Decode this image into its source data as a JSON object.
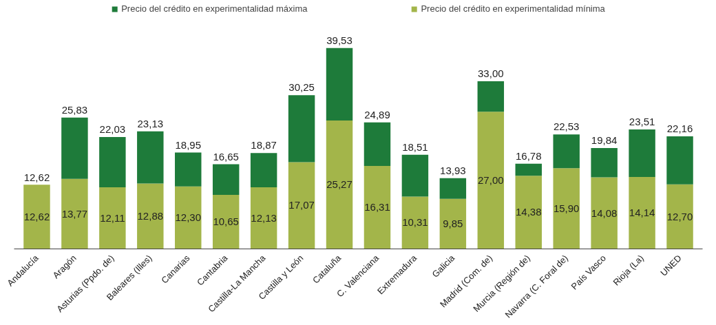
{
  "chart_data": {
    "type": "bar",
    "stacked": true,
    "legend": "top",
    "grid": false,
    "categories": [
      "Andalucía",
      "Aragón",
      "Asturias (Ppdo. de)",
      "Baleares (Illes)",
      "Canarias",
      "Cantabria",
      "Castilla-La Mancha",
      "Castilla y León",
      "Cataluña",
      "C. Valenciana",
      "Extremadura",
      "Galicia",
      "Madrid (Com. de)",
      "Murcia (Región de)",
      "Navarra (C. Foral de)",
      "País Vasco",
      "Rioja (La)",
      "UNED"
    ],
    "series": [
      {
        "name": "Precio del crédito en experimentalidad mínima",
        "color": "#a3b54a",
        "values": [
          12.62,
          13.77,
          12.11,
          12.88,
          12.3,
          10.65,
          12.13,
          17.07,
          25.27,
          16.31,
          10.31,
          9.85,
          27.0,
          14.38,
          15.9,
          14.08,
          14.14,
          12.7
        ],
        "value_labels": [
          "12,62",
          "13,77",
          "12,11",
          "12,88",
          "12,30",
          "10,65",
          "12,13",
          "17,07",
          "25,27",
          "16,31",
          "10,31",
          "9,85",
          "27,00",
          "14,38",
          "15,90",
          "14,08",
          "14,14",
          "12,70"
        ]
      },
      {
        "name": "Precio del crédito en experimentalidad máxima",
        "color": "#1e7b3a",
        "values": [
          0,
          12.06,
          9.92,
          10.25,
          6.65,
          6.0,
          6.74,
          13.18,
          14.26,
          8.58,
          8.2,
          4.08,
          6.0,
          2.4,
          6.63,
          5.76,
          9.37,
          9.46
        ]
      }
    ],
    "totals": [
      "12,62",
      "25,83",
      "22,03",
      "23,13",
      "18,95",
      "16,65",
      "18,87",
      "30,25",
      "39,53",
      "24,89",
      "18,51",
      "13,93",
      "33,00",
      "16,78",
      "22,53",
      "19,84",
      "23,51",
      "22,16"
    ]
  }
}
